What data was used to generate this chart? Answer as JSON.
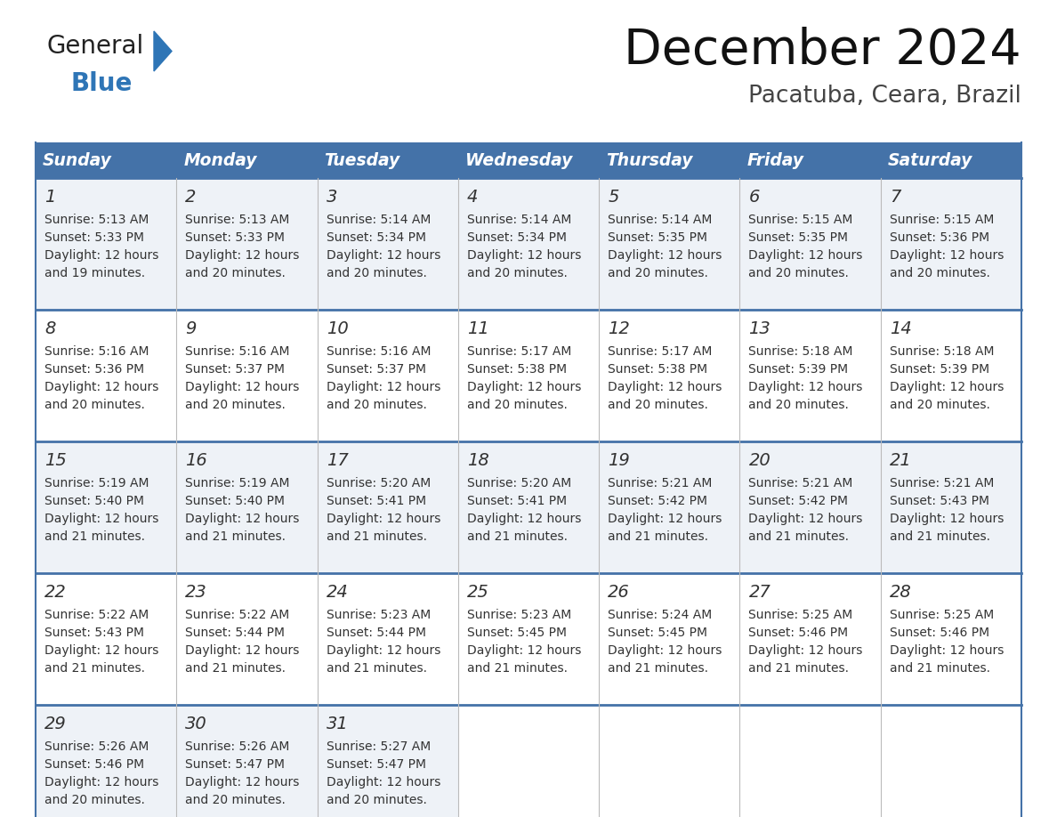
{
  "title": "December 2024",
  "subtitle": "Pacatuba, Ceara, Brazil",
  "header_bg_color": "#4472a8",
  "header_text_color": "#ffffff",
  "row_bg_color_1": "#eef2f7",
  "row_bg_color_2": "#ffffff",
  "border_color": "#4472a8",
  "text_color": "#333333",
  "logo_general_color": "#222222",
  "logo_blue_color": "#2e75b6",
  "logo_triangle_color": "#2e75b6",
  "days_of_week": [
    "Sunday",
    "Monday",
    "Tuesday",
    "Wednesday",
    "Thursday",
    "Friday",
    "Saturday"
  ],
  "weeks": [
    [
      {
        "day": 1,
        "sunrise": "5:13 AM",
        "sunset": "5:33 PM",
        "daylight1": "Daylight: 12 hours",
        "daylight2": "and 19 minutes."
      },
      {
        "day": 2,
        "sunrise": "5:13 AM",
        "sunset": "5:33 PM",
        "daylight1": "Daylight: 12 hours",
        "daylight2": "and 20 minutes."
      },
      {
        "day": 3,
        "sunrise": "5:14 AM",
        "sunset": "5:34 PM",
        "daylight1": "Daylight: 12 hours",
        "daylight2": "and 20 minutes."
      },
      {
        "day": 4,
        "sunrise": "5:14 AM",
        "sunset": "5:34 PM",
        "daylight1": "Daylight: 12 hours",
        "daylight2": "and 20 minutes."
      },
      {
        "day": 5,
        "sunrise": "5:14 AM",
        "sunset": "5:35 PM",
        "daylight1": "Daylight: 12 hours",
        "daylight2": "and 20 minutes."
      },
      {
        "day": 6,
        "sunrise": "5:15 AM",
        "sunset": "5:35 PM",
        "daylight1": "Daylight: 12 hours",
        "daylight2": "and 20 minutes."
      },
      {
        "day": 7,
        "sunrise": "5:15 AM",
        "sunset": "5:36 PM",
        "daylight1": "Daylight: 12 hours",
        "daylight2": "and 20 minutes."
      }
    ],
    [
      {
        "day": 8,
        "sunrise": "5:16 AM",
        "sunset": "5:36 PM",
        "daylight1": "Daylight: 12 hours",
        "daylight2": "and 20 minutes."
      },
      {
        "day": 9,
        "sunrise": "5:16 AM",
        "sunset": "5:37 PM",
        "daylight1": "Daylight: 12 hours",
        "daylight2": "and 20 minutes."
      },
      {
        "day": 10,
        "sunrise": "5:16 AM",
        "sunset": "5:37 PM",
        "daylight1": "Daylight: 12 hours",
        "daylight2": "and 20 minutes."
      },
      {
        "day": 11,
        "sunrise": "5:17 AM",
        "sunset": "5:38 PM",
        "daylight1": "Daylight: 12 hours",
        "daylight2": "and 20 minutes."
      },
      {
        "day": 12,
        "sunrise": "5:17 AM",
        "sunset": "5:38 PM",
        "daylight1": "Daylight: 12 hours",
        "daylight2": "and 20 minutes."
      },
      {
        "day": 13,
        "sunrise": "5:18 AM",
        "sunset": "5:39 PM",
        "daylight1": "Daylight: 12 hours",
        "daylight2": "and 20 minutes."
      },
      {
        "day": 14,
        "sunrise": "5:18 AM",
        "sunset": "5:39 PM",
        "daylight1": "Daylight: 12 hours",
        "daylight2": "and 20 minutes."
      }
    ],
    [
      {
        "day": 15,
        "sunrise": "5:19 AM",
        "sunset": "5:40 PM",
        "daylight1": "Daylight: 12 hours",
        "daylight2": "and 21 minutes."
      },
      {
        "day": 16,
        "sunrise": "5:19 AM",
        "sunset": "5:40 PM",
        "daylight1": "Daylight: 12 hours",
        "daylight2": "and 21 minutes."
      },
      {
        "day": 17,
        "sunrise": "5:20 AM",
        "sunset": "5:41 PM",
        "daylight1": "Daylight: 12 hours",
        "daylight2": "and 21 minutes."
      },
      {
        "day": 18,
        "sunrise": "5:20 AM",
        "sunset": "5:41 PM",
        "daylight1": "Daylight: 12 hours",
        "daylight2": "and 21 minutes."
      },
      {
        "day": 19,
        "sunrise": "5:21 AM",
        "sunset": "5:42 PM",
        "daylight1": "Daylight: 12 hours",
        "daylight2": "and 21 minutes."
      },
      {
        "day": 20,
        "sunrise": "5:21 AM",
        "sunset": "5:42 PM",
        "daylight1": "Daylight: 12 hours",
        "daylight2": "and 21 minutes."
      },
      {
        "day": 21,
        "sunrise": "5:21 AM",
        "sunset": "5:43 PM",
        "daylight1": "Daylight: 12 hours",
        "daylight2": "and 21 minutes."
      }
    ],
    [
      {
        "day": 22,
        "sunrise": "5:22 AM",
        "sunset": "5:43 PM",
        "daylight1": "Daylight: 12 hours",
        "daylight2": "and 21 minutes."
      },
      {
        "day": 23,
        "sunrise": "5:22 AM",
        "sunset": "5:44 PM",
        "daylight1": "Daylight: 12 hours",
        "daylight2": "and 21 minutes."
      },
      {
        "day": 24,
        "sunrise": "5:23 AM",
        "sunset": "5:44 PM",
        "daylight1": "Daylight: 12 hours",
        "daylight2": "and 21 minutes."
      },
      {
        "day": 25,
        "sunrise": "5:23 AM",
        "sunset": "5:45 PM",
        "daylight1": "Daylight: 12 hours",
        "daylight2": "and 21 minutes."
      },
      {
        "day": 26,
        "sunrise": "5:24 AM",
        "sunset": "5:45 PM",
        "daylight1": "Daylight: 12 hours",
        "daylight2": "and 21 minutes."
      },
      {
        "day": 27,
        "sunrise": "5:25 AM",
        "sunset": "5:46 PM",
        "daylight1": "Daylight: 12 hours",
        "daylight2": "and 21 minutes."
      },
      {
        "day": 28,
        "sunrise": "5:25 AM",
        "sunset": "5:46 PM",
        "daylight1": "Daylight: 12 hours",
        "daylight2": "and 21 minutes."
      }
    ],
    [
      {
        "day": 29,
        "sunrise": "5:26 AM",
        "sunset": "5:46 PM",
        "daylight1": "Daylight: 12 hours",
        "daylight2": "and 20 minutes."
      },
      {
        "day": 30,
        "sunrise": "5:26 AM",
        "sunset": "5:47 PM",
        "daylight1": "Daylight: 12 hours",
        "daylight2": "and 20 minutes."
      },
      {
        "day": 31,
        "sunrise": "5:27 AM",
        "sunset": "5:47 PM",
        "daylight1": "Daylight: 12 hours",
        "daylight2": "and 20 minutes."
      },
      null,
      null,
      null,
      null
    ]
  ]
}
